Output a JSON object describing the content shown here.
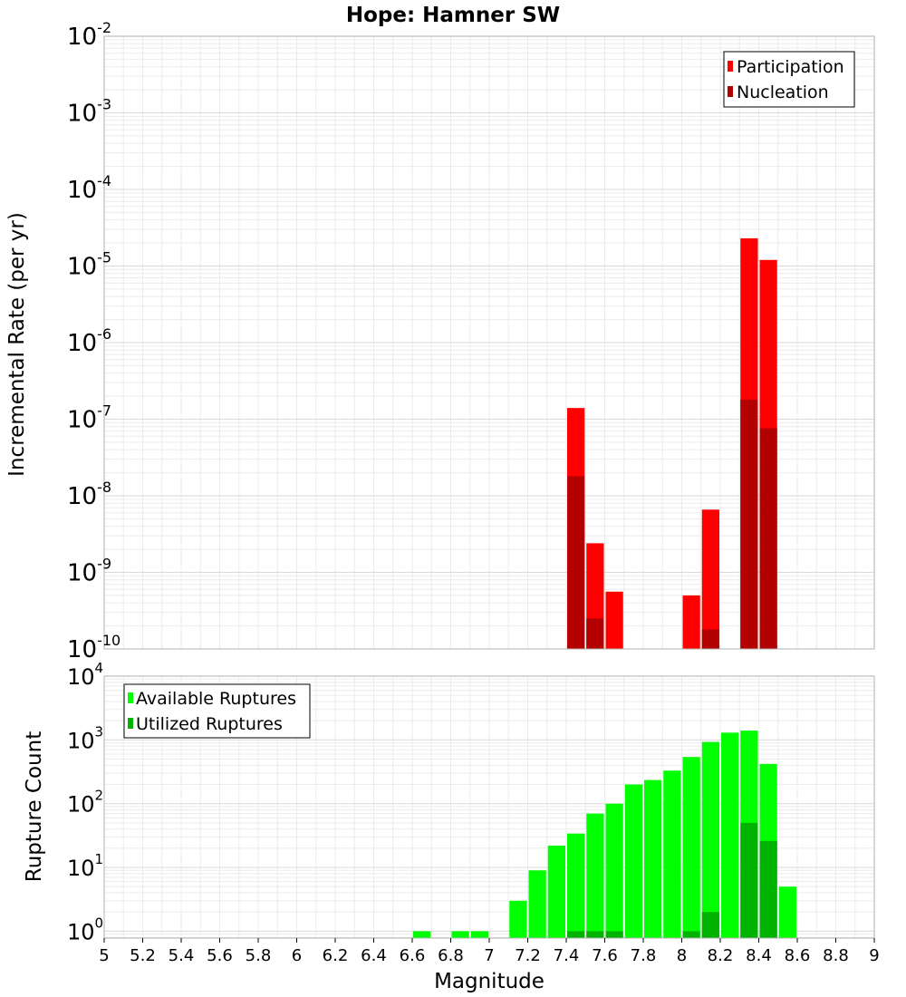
{
  "title": "Hope: Hamner SW",
  "chart_data": [
    {
      "type": "bar",
      "ylabel": "Incremental Rate (per yr)",
      "xlabel": "",
      "yscale": "log",
      "ylim": [
        1e-10,
        0.01
      ],
      "xlim": [
        5,
        9
      ],
      "bin_width": 0.1,
      "grid": true,
      "legend_position": "top-right",
      "y_ticks": [
        {
          "base": "10",
          "exp": "-10"
        },
        {
          "base": "10",
          "exp": "-9"
        },
        {
          "base": "10",
          "exp": "-8"
        },
        {
          "base": "10",
          "exp": "-7"
        },
        {
          "base": "10",
          "exp": "-6"
        },
        {
          "base": "10",
          "exp": "-5"
        },
        {
          "base": "10",
          "exp": "-4"
        },
        {
          "base": "10",
          "exp": "-3"
        },
        {
          "base": "10",
          "exp": "-2"
        }
      ],
      "series": [
        {
          "name": "Participation",
          "color": "#ff0000",
          "x": [
            7.45,
            7.55,
            7.65,
            8.05,
            8.15,
            8.35,
            8.45
          ],
          "values": [
            1.4e-07,
            2.4e-09,
            5.6e-10,
            5e-10,
            6.6e-09,
            2.3e-05,
            1.2e-05
          ]
        },
        {
          "name": "Nucleation",
          "color": "#b30000",
          "x": [
            7.45,
            7.55,
            8.15,
            8.35,
            8.45
          ],
          "values": [
            1.8e-08,
            2.5e-10,
            1.8e-10,
            1.8e-07,
            7.6e-08
          ]
        }
      ]
    },
    {
      "type": "bar",
      "ylabel": "Rupture Count",
      "xlabel": "Magnitude",
      "yscale": "log",
      "ylim": [
        0.78,
        10000
      ],
      "xlim": [
        5,
        9
      ],
      "bin_width": 0.1,
      "grid": true,
      "legend_position": "top-left",
      "x_ticks": [
        "5",
        "5.2",
        "5.4",
        "5.6",
        "5.8",
        "6",
        "6.2",
        "6.4",
        "6.6",
        "6.8",
        "7",
        "7.2",
        "7.4",
        "7.6",
        "7.8",
        "8",
        "8.2",
        "8.4",
        "8.6",
        "8.8",
        "9"
      ],
      "y_ticks": [
        {
          "base": "10",
          "exp": "0"
        },
        {
          "base": "10",
          "exp": "1"
        },
        {
          "base": "10",
          "exp": "2"
        },
        {
          "base": "10",
          "exp": "3"
        },
        {
          "base": "10",
          "exp": "4"
        }
      ],
      "series": [
        {
          "name": "Available Ruptures",
          "color": "#00ff00",
          "x": [
            6.65,
            6.85,
            6.95,
            7.15,
            7.25,
            7.35,
            7.45,
            7.55,
            7.65,
            7.75,
            7.85,
            7.95,
            8.05,
            8.15,
            8.25,
            8.35,
            8.45,
            8.55
          ],
          "values": [
            1,
            1,
            1,
            3,
            9,
            22,
            34,
            70,
            100,
            200,
            235,
            330,
            540,
            930,
            1300,
            1400,
            420,
            5
          ]
        },
        {
          "name": "Utilized Ruptures",
          "color": "#00b300",
          "x": [
            7.45,
            7.55,
            7.65,
            8.05,
            8.15,
            8.35,
            8.45
          ],
          "values": [
            1,
            1,
            1,
            1,
            2,
            50,
            26
          ]
        }
      ]
    }
  ]
}
